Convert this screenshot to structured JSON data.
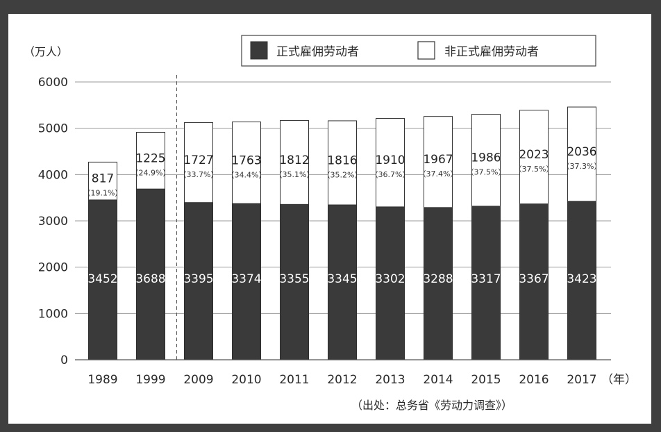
{
  "chart_data": {
    "type": "bar",
    "stacked": true,
    "y_unit_label": "（万人）",
    "x_unit_label": "（年）",
    "categories": [
      "1989",
      "1999",
      "2009",
      "2010",
      "2011",
      "2012",
      "2013",
      "2014",
      "2015",
      "2016",
      "2017"
    ],
    "series": [
      {
        "name": "正式雇佣劳动者",
        "color": "#3a3a3a",
        "values": [
          3452,
          3688,
          3395,
          3374,
          3355,
          3345,
          3302,
          3288,
          3317,
          3367,
          3423
        ]
      },
      {
        "name": "非正式雇佣劳动者",
        "color": "#ffffff",
        "values": [
          817,
          1225,
          1727,
          1763,
          1812,
          1816,
          1910,
          1967,
          1986,
          2023,
          2036
        ],
        "share_labels": [
          "（19.1%）",
          "（24.9%）",
          "（33.7%）",
          "（34.4%）",
          "（35.1%）",
          "（35.2%）",
          "（36.7%）",
          "（37.4%）",
          "（37.5%）",
          "（37.5%）",
          "（37.3%）"
        ]
      }
    ],
    "ylim": [
      0,
      6000
    ],
    "yticks": [
      "0",
      "1000",
      "2000",
      "3000",
      "4000",
      "5000",
      "6000"
    ],
    "grid": true,
    "legend_position": "top-right",
    "divider_after_category": "1999",
    "source": "（出处：总务省《劳动力调查》）"
  }
}
